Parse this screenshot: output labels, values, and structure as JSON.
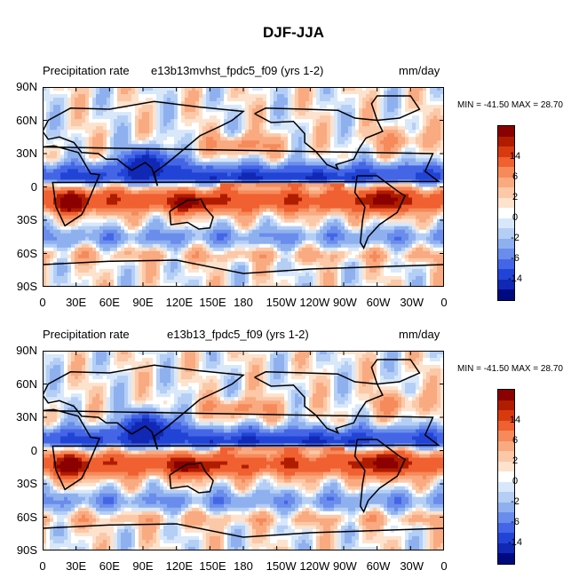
{
  "title": "DJF-JJA",
  "colorbar": {
    "colors": [
      "#8b0000",
      "#b01c00",
      "#d83a10",
      "#f06030",
      "#f68a5a",
      "#f9aa80",
      "#fbc8a8",
      "#fde2cd",
      "#ffffff",
      "#d8e8fa",
      "#b4cef5",
      "#8fb0ef",
      "#6a8cec",
      "#4466e6",
      "#2244d6",
      "#1028b4",
      "#000a80"
    ],
    "labels": [
      {
        "text": "14",
        "slot": 2
      },
      {
        "text": "6",
        "slot": 4
      },
      {
        "text": "2",
        "slot": 6
      },
      {
        "text": "0",
        "slot": 8
      },
      {
        "text": "-2",
        "slot": 10
      },
      {
        "text": "-6",
        "slot": 12
      },
      {
        "text": "-14",
        "slot": 14
      }
    ]
  },
  "panels": [
    {
      "left_title": "Precipitation rate",
      "center_title": "e13b13mvhst_fpdc5_f09 (yrs 1-2)",
      "right_title": "mm/day",
      "minmax": "MIN = -41.50  MAX =  28.70"
    },
    {
      "left_title": "Precipitation rate",
      "center_title": "e13b13_fpdc5_f09 (yrs 1-2)",
      "right_title": "mm/day",
      "minmax": "MIN = -41.50  MAX =  28.70"
    }
  ],
  "chart_data": [
    {
      "type": "heatmap",
      "title": "Precipitation rate",
      "subtitle": "e13b13mvhst_fpdc5_f09 (yrs 1-2)",
      "units": "mm/day",
      "x_ticks": [
        "0",
        "30E",
        "60E",
        "90E",
        "120E",
        "150E",
        "180",
        "150W",
        "120W",
        "90W",
        "60W",
        "30W",
        "0"
      ],
      "y_ticks": [
        "90N",
        "60N",
        "30N",
        "0",
        "30S",
        "60S",
        "90S"
      ],
      "xlim": [
        0,
        360
      ],
      "ylim": [
        -90,
        90
      ],
      "min": -41.5,
      "max": 28.7,
      "contour_levels": [
        -14,
        -6,
        -2,
        0,
        2,
        6,
        14
      ]
    },
    {
      "type": "heatmap",
      "title": "Precipitation rate",
      "subtitle": "e13b13_fpdc5_f09 (yrs 1-2)",
      "units": "mm/day",
      "x_ticks": [
        "0",
        "30E",
        "60E",
        "90E",
        "120E",
        "150E",
        "180",
        "150W",
        "120W",
        "90W",
        "60W",
        "30W",
        "0"
      ],
      "y_ticks": [
        "90N",
        "60N",
        "30N",
        "0",
        "30S",
        "60S",
        "90S"
      ],
      "xlim": [
        0,
        360
      ],
      "ylim": [
        -90,
        90
      ],
      "min": -41.5,
      "max": 28.7,
      "contour_levels": [
        -14,
        -6,
        -2,
        0,
        2,
        6,
        14
      ]
    }
  ]
}
